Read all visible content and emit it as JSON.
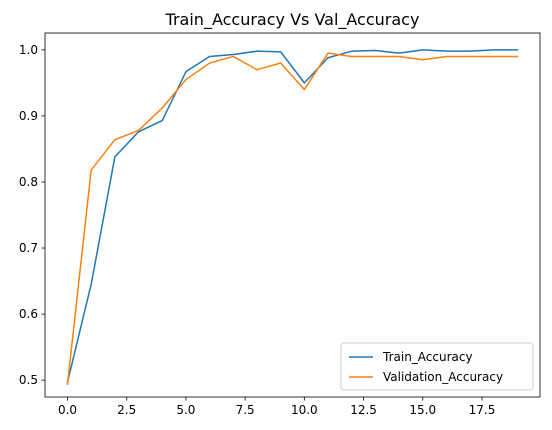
{
  "chart_data": {
    "type": "line",
    "title": "Train_Accuracy Vs Val_Accuracy",
    "xlabel": "",
    "ylabel": "",
    "xlim": [
      -0.95,
      19.95
    ],
    "ylim": [
      0.4745,
      1.0255
    ],
    "xticks": [
      0.0,
      2.5,
      5.0,
      7.5,
      10.0,
      12.5,
      15.0,
      17.5
    ],
    "xtick_labels": [
      "0.0",
      "2.5",
      "5.0",
      "7.5",
      "10.0",
      "12.5",
      "15.0",
      "17.5"
    ],
    "yticks": [
      0.5,
      0.6,
      0.7,
      0.8,
      0.9,
      1.0
    ],
    "ytick_labels": [
      "0.5",
      "0.6",
      "0.7",
      "0.8",
      "0.9",
      "1.0"
    ],
    "grid": false,
    "legend": "lower-right",
    "x": [
      0,
      1,
      2,
      3,
      4,
      5,
      6,
      7,
      8,
      9,
      10,
      11,
      12,
      13,
      14,
      15,
      16,
      17,
      18,
      19
    ],
    "series": [
      {
        "name": "Train_Accuracy",
        "color": "#1f77b4",
        "values": [
          0.497,
          0.645,
          0.838,
          0.876,
          0.893,
          0.967,
          0.99,
          0.993,
          0.998,
          0.997,
          0.95,
          0.988,
          0.998,
          0.999,
          0.995,
          1.0,
          0.998,
          0.998,
          1.0,
          1.0
        ]
      },
      {
        "name": "Validation_Accuracy",
        "color": "#ff7f0e",
        "values": [
          0.494,
          0.818,
          0.864,
          0.878,
          0.912,
          0.955,
          0.98,
          0.99,
          0.97,
          0.98,
          0.94,
          0.995,
          0.99,
          0.99,
          0.99,
          0.985,
          0.99,
          0.99,
          0.99,
          0.99
        ]
      }
    ]
  }
}
